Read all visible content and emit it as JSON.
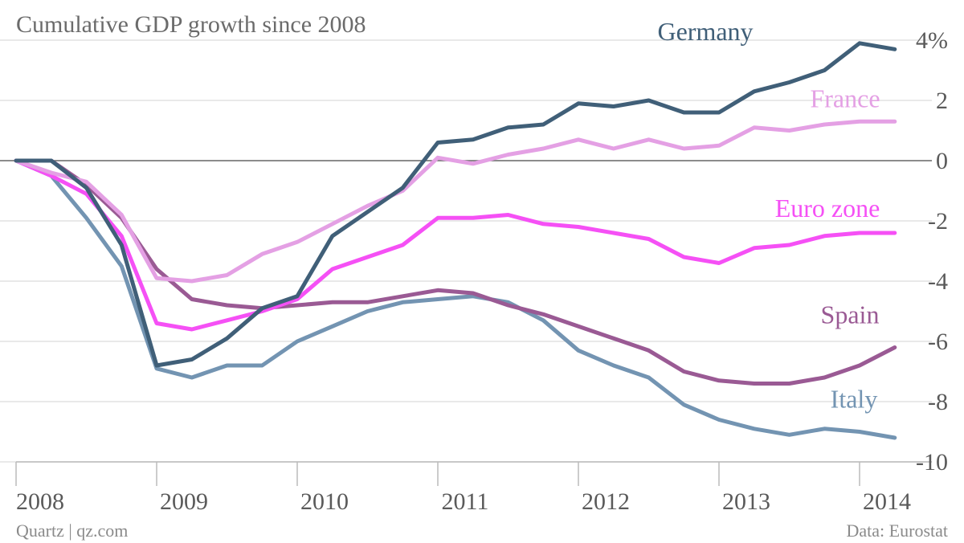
{
  "chart_data": {
    "type": "line",
    "title": "Cumulative GDP growth since 2008",
    "xlabel": "",
    "ylabel": "",
    "ylim": [
      -10.5,
      4
    ],
    "y_ticks": [
      {
        "value": 4,
        "label": "4%"
      },
      {
        "value": 2,
        "label": "2"
      },
      {
        "value": 0,
        "label": "0"
      },
      {
        "value": -2,
        "label": "-2"
      },
      {
        "value": -4,
        "label": "-4"
      },
      {
        "value": -6,
        "label": "-6"
      },
      {
        "value": -8,
        "label": "-8"
      },
      {
        "value": -10,
        "label": "-10"
      }
    ],
    "x_ticks": [
      "2008",
      "2009",
      "2010",
      "2011",
      "2012",
      "2013",
      "2014"
    ],
    "x": [
      "2008 Q1",
      "2008 Q2",
      "2008 Q3",
      "2008 Q4",
      "2009 Q1",
      "2009 Q2",
      "2009 Q3",
      "2009 Q4",
      "2010 Q1",
      "2010 Q2",
      "2010 Q3",
      "2010 Q4",
      "2011 Q1",
      "2011 Q2",
      "2011 Q3",
      "2011 Q4",
      "2012 Q1",
      "2012 Q2",
      "2012 Q3",
      "2012 Q4",
      "2013 Q1",
      "2013 Q2",
      "2013 Q3",
      "2013 Q4",
      "2014 Q1",
      "2014 Q2"
    ],
    "grid": true,
    "series": [
      {
        "name": "Germany",
        "color": "#405f78",
        "values": [
          0,
          0,
          -0.9,
          -2.8,
          -6.8,
          -6.6,
          -5.9,
          -4.9,
          -4.5,
          -2.5,
          -1.7,
          -0.9,
          0.6,
          0.7,
          1.1,
          1.2,
          1.9,
          1.8,
          2.0,
          1.6,
          1.6,
          2.3,
          2.6,
          3.0,
          3.9,
          3.7
        ]
      },
      {
        "name": "France",
        "color": "#e4a0e4",
        "values": [
          0,
          -0.4,
          -0.7,
          -1.8,
          -3.9,
          -4.0,
          -3.8,
          -3.1,
          -2.7,
          -2.1,
          -1.5,
          -1.0,
          0.1,
          -0.1,
          0.2,
          0.4,
          0.7,
          0.4,
          0.7,
          0.4,
          0.5,
          1.1,
          1.0,
          1.2,
          1.3,
          1.3
        ]
      },
      {
        "name": "Euro zone",
        "color": "#f550f5",
        "values": [
          0,
          -0.5,
          -1.1,
          -2.5,
          -5.4,
          -5.6,
          -5.3,
          -5.0,
          -4.6,
          -3.6,
          -3.2,
          -2.8,
          -1.9,
          -1.9,
          -1.8,
          -2.1,
          -2.2,
          -2.4,
          -2.6,
          -3.2,
          -3.4,
          -2.9,
          -2.8,
          -2.5,
          -2.4,
          -2.4
        ]
      },
      {
        "name": "Spain",
        "color": "#9a5a94",
        "values": [
          0,
          0,
          -0.8,
          -1.9,
          -3.6,
          -4.6,
          -4.8,
          -4.9,
          -4.8,
          -4.7,
          -4.7,
          -4.5,
          -4.3,
          -4.4,
          -4.8,
          -5.1,
          -5.5,
          -5.9,
          -6.3,
          -7.0,
          -7.3,
          -7.4,
          -7.4,
          -7.2,
          -6.8,
          -6.2
        ]
      },
      {
        "name": "Italy",
        "color": "#7394b2",
        "values": [
          0,
          -0.5,
          -1.9,
          -3.5,
          -6.9,
          -7.2,
          -6.8,
          -6.8,
          -6.0,
          -5.5,
          -5.0,
          -4.7,
          -4.6,
          -4.5,
          -4.7,
          -5.3,
          -6.3,
          -6.8,
          -7.2,
          -8.1,
          -8.6,
          -8.9,
          -9.1,
          -8.9,
          -9.0,
          -9.2
        ]
      }
    ],
    "series_labels": [
      "Germany",
      "France",
      "Euro zone",
      "Spain",
      "Italy"
    ]
  },
  "footer": {
    "source_left": "Quartz | qz.com",
    "source_right": "Data: Eurostat"
  }
}
